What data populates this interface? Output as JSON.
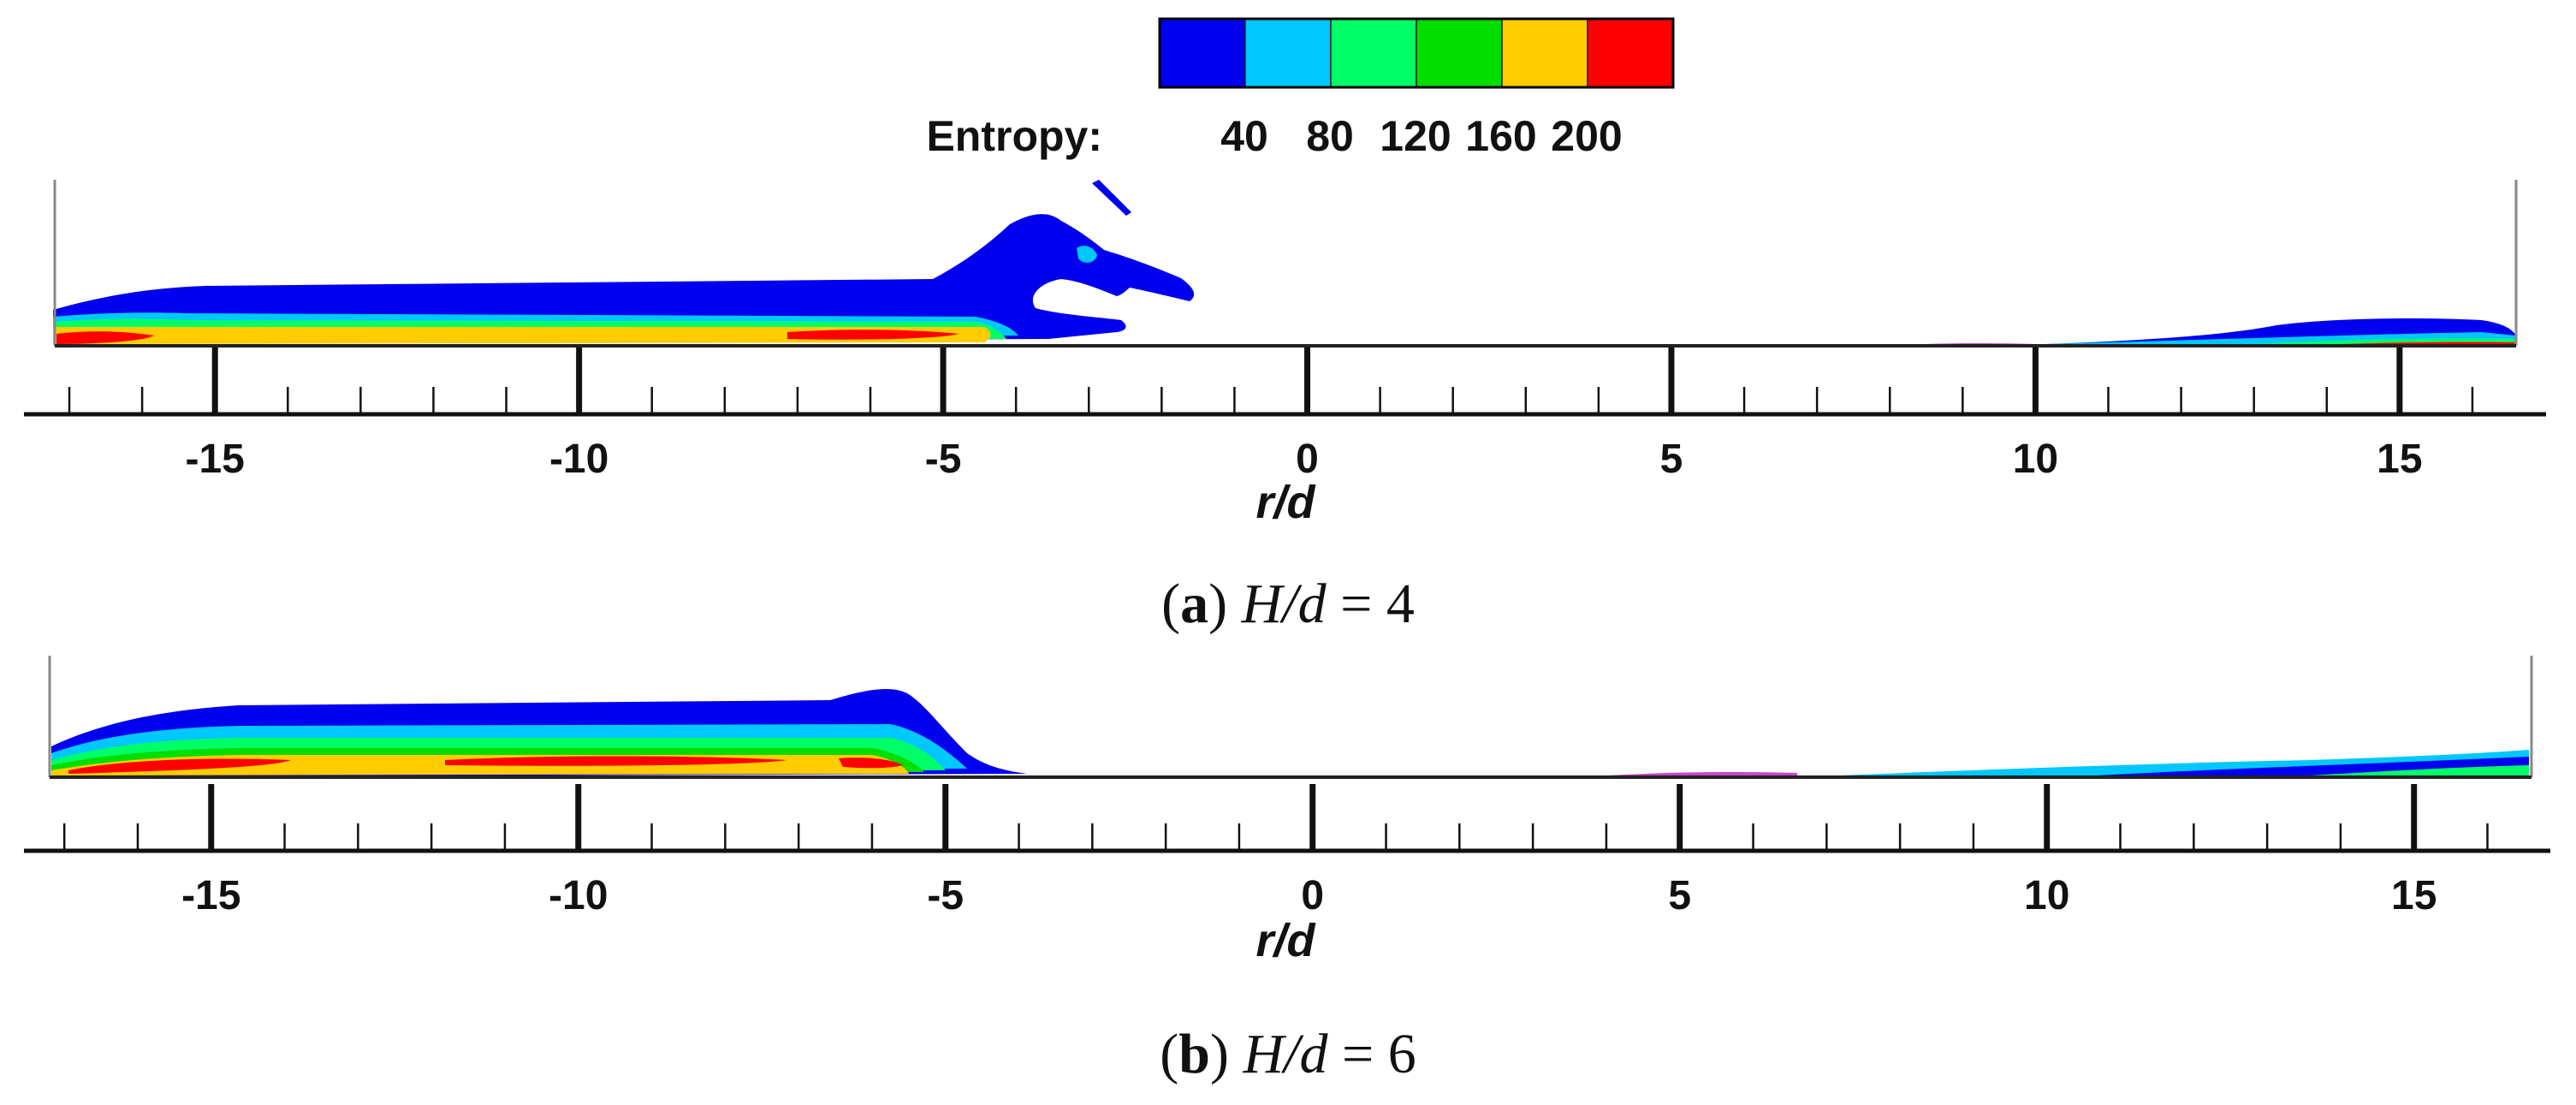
{
  "colorbar": {
    "label": "Entropy:",
    "colors": [
      "#0000ee",
      "#00c8ff",
      "#00ff66",
      "#00dd00",
      "#ffcc00",
      "#ff0000"
    ],
    "tick_labels": [
      "40",
      "80",
      "120",
      "160",
      "200"
    ]
  },
  "chart_data": [
    {
      "type": "heatmap",
      "panel": "a",
      "caption_letter": "a",
      "caption_var": "H/d",
      "caption_eq": " = 4",
      "variable": "Entropy",
      "levels": [
        40,
        80,
        120,
        160,
        200
      ],
      "xlabel": "r/d",
      "xlim": [
        -17.2,
        16.6
      ],
      "xticks": [
        "-15",
        "-10",
        "-5",
        "0",
        "5",
        "10",
        "15"
      ],
      "xtick_values": [
        -15,
        -10,
        -5,
        0,
        5,
        10,
        15
      ],
      "minor_tick_step": 1,
      "description_levels_left": "Stratified layers along the wall from r/d = -17 to about -1.5, with a detached plume near r/d = -3"
    },
    {
      "type": "heatmap",
      "panel": "b",
      "caption_letter": "b",
      "caption_var": "H/d",
      "caption_eq": " = 6",
      "variable": "Entropy",
      "levels": [
        40,
        80,
        120,
        160,
        200
      ],
      "xlabel": "r/d",
      "xlim": [
        -17.2,
        16.6
      ],
      "xticks": [
        "-15",
        "-10",
        "-5",
        "0",
        "5",
        "10",
        "15"
      ],
      "xtick_values": [
        -15,
        -10,
        -5,
        0,
        5,
        10,
        15
      ],
      "minor_tick_step": 1
    }
  ]
}
